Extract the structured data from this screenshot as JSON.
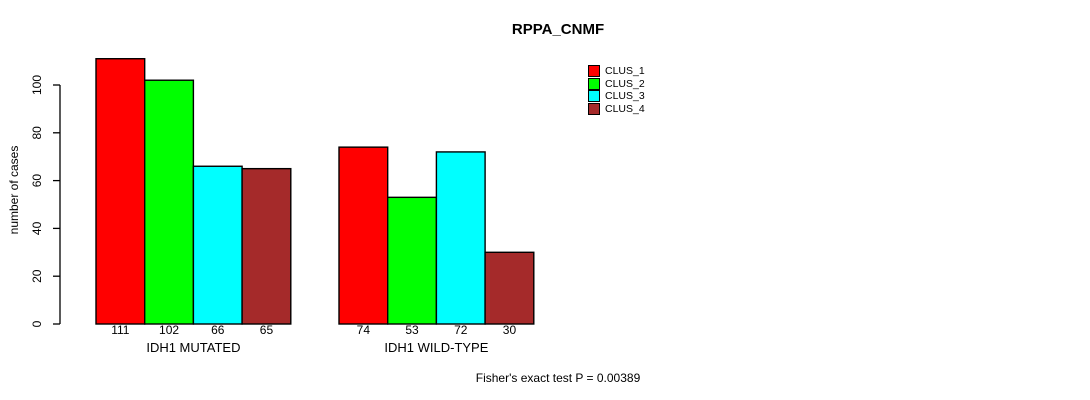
{
  "chart_data": {
    "type": "bar",
    "title": "RPPA_CNMF",
    "ylabel": "number of cases",
    "xlabel": "",
    "annotation": "Fisher's exact test P = 0.00389",
    "categories": [
      "IDH1 MUTATED",
      "IDH1 WILD-TYPE"
    ],
    "series": [
      {
        "name": "CLUS_1",
        "color": "#ff0000",
        "values": [
          111,
          74
        ]
      },
      {
        "name": "CLUS_2",
        "color": "#00ff00",
        "values": [
          102,
          53
        ]
      },
      {
        "name": "CLUS_3",
        "color": "#00ffff",
        "values": [
          66,
          72
        ]
      },
      {
        "name": "CLUS_4",
        "color": "#a52a2a",
        "values": [
          65,
          30
        ]
      }
    ],
    "bar_value_labels": [
      [
        "111",
        "102",
        "66",
        "65"
      ],
      [
        "74",
        "53",
        "72",
        "30"
      ]
    ],
    "y_ticks": [
      0,
      20,
      40,
      60,
      80,
      100
    ],
    "ylim": [
      0,
      111
    ],
    "grid": false,
    "legend_position": "top-right",
    "legend_border": false
  },
  "colors": {
    "axis": "#000000",
    "text": "#000000",
    "background": "#ffffff",
    "bar_border": "#000000"
  }
}
